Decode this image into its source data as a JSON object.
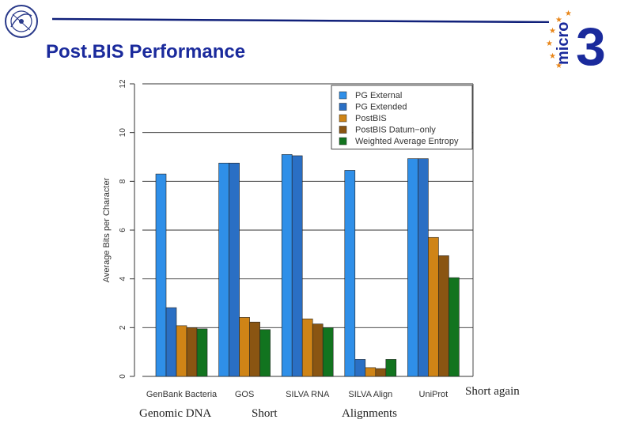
{
  "header": {
    "title": "Post.BIS Performance",
    "right_logo_text": "micro",
    "right_logo_number": "3"
  },
  "notes": {
    "short_again": "Short again",
    "genomic_dna": "Genomic DNA",
    "short": "Short",
    "alignments": "Alignments"
  },
  "chart_data": {
    "type": "bar",
    "title": "",
    "xlabel": "",
    "ylabel": "Average Bits per Character",
    "ylim": [
      0,
      12
    ],
    "yticks": [
      0,
      2,
      4,
      6,
      8,
      10,
      12
    ],
    "grid": true,
    "legend_position": "top-right",
    "categories": [
      "GenBank Bacteria",
      "GOS",
      "SILVA RNA",
      "SILVA Align",
      "UniProt"
    ],
    "series": [
      {
        "name": "PG External",
        "color": "#2f8fe8",
        "values": [
          8.3,
          8.75,
          9.1,
          8.45,
          8.93
        ]
      },
      {
        "name": "PG Extended",
        "color": "#2a6fc4",
        "values": [
          2.82,
          8.75,
          9.05,
          0.7,
          8.93
        ]
      },
      {
        "name": "PostBIS",
        "color": "#cf8416",
        "values": [
          2.08,
          2.42,
          2.36,
          0.36,
          5.7
        ]
      },
      {
        "name": "PostBIS Datum−only",
        "color": "#8a5512",
        "values": [
          2.0,
          2.23,
          2.15,
          0.32,
          4.95
        ]
      },
      {
        "name": "Weighted Average Entropy",
        "color": "#12741f",
        "values": [
          1.95,
          1.92,
          2.0,
          0.7,
          4.05
        ]
      }
    ]
  }
}
